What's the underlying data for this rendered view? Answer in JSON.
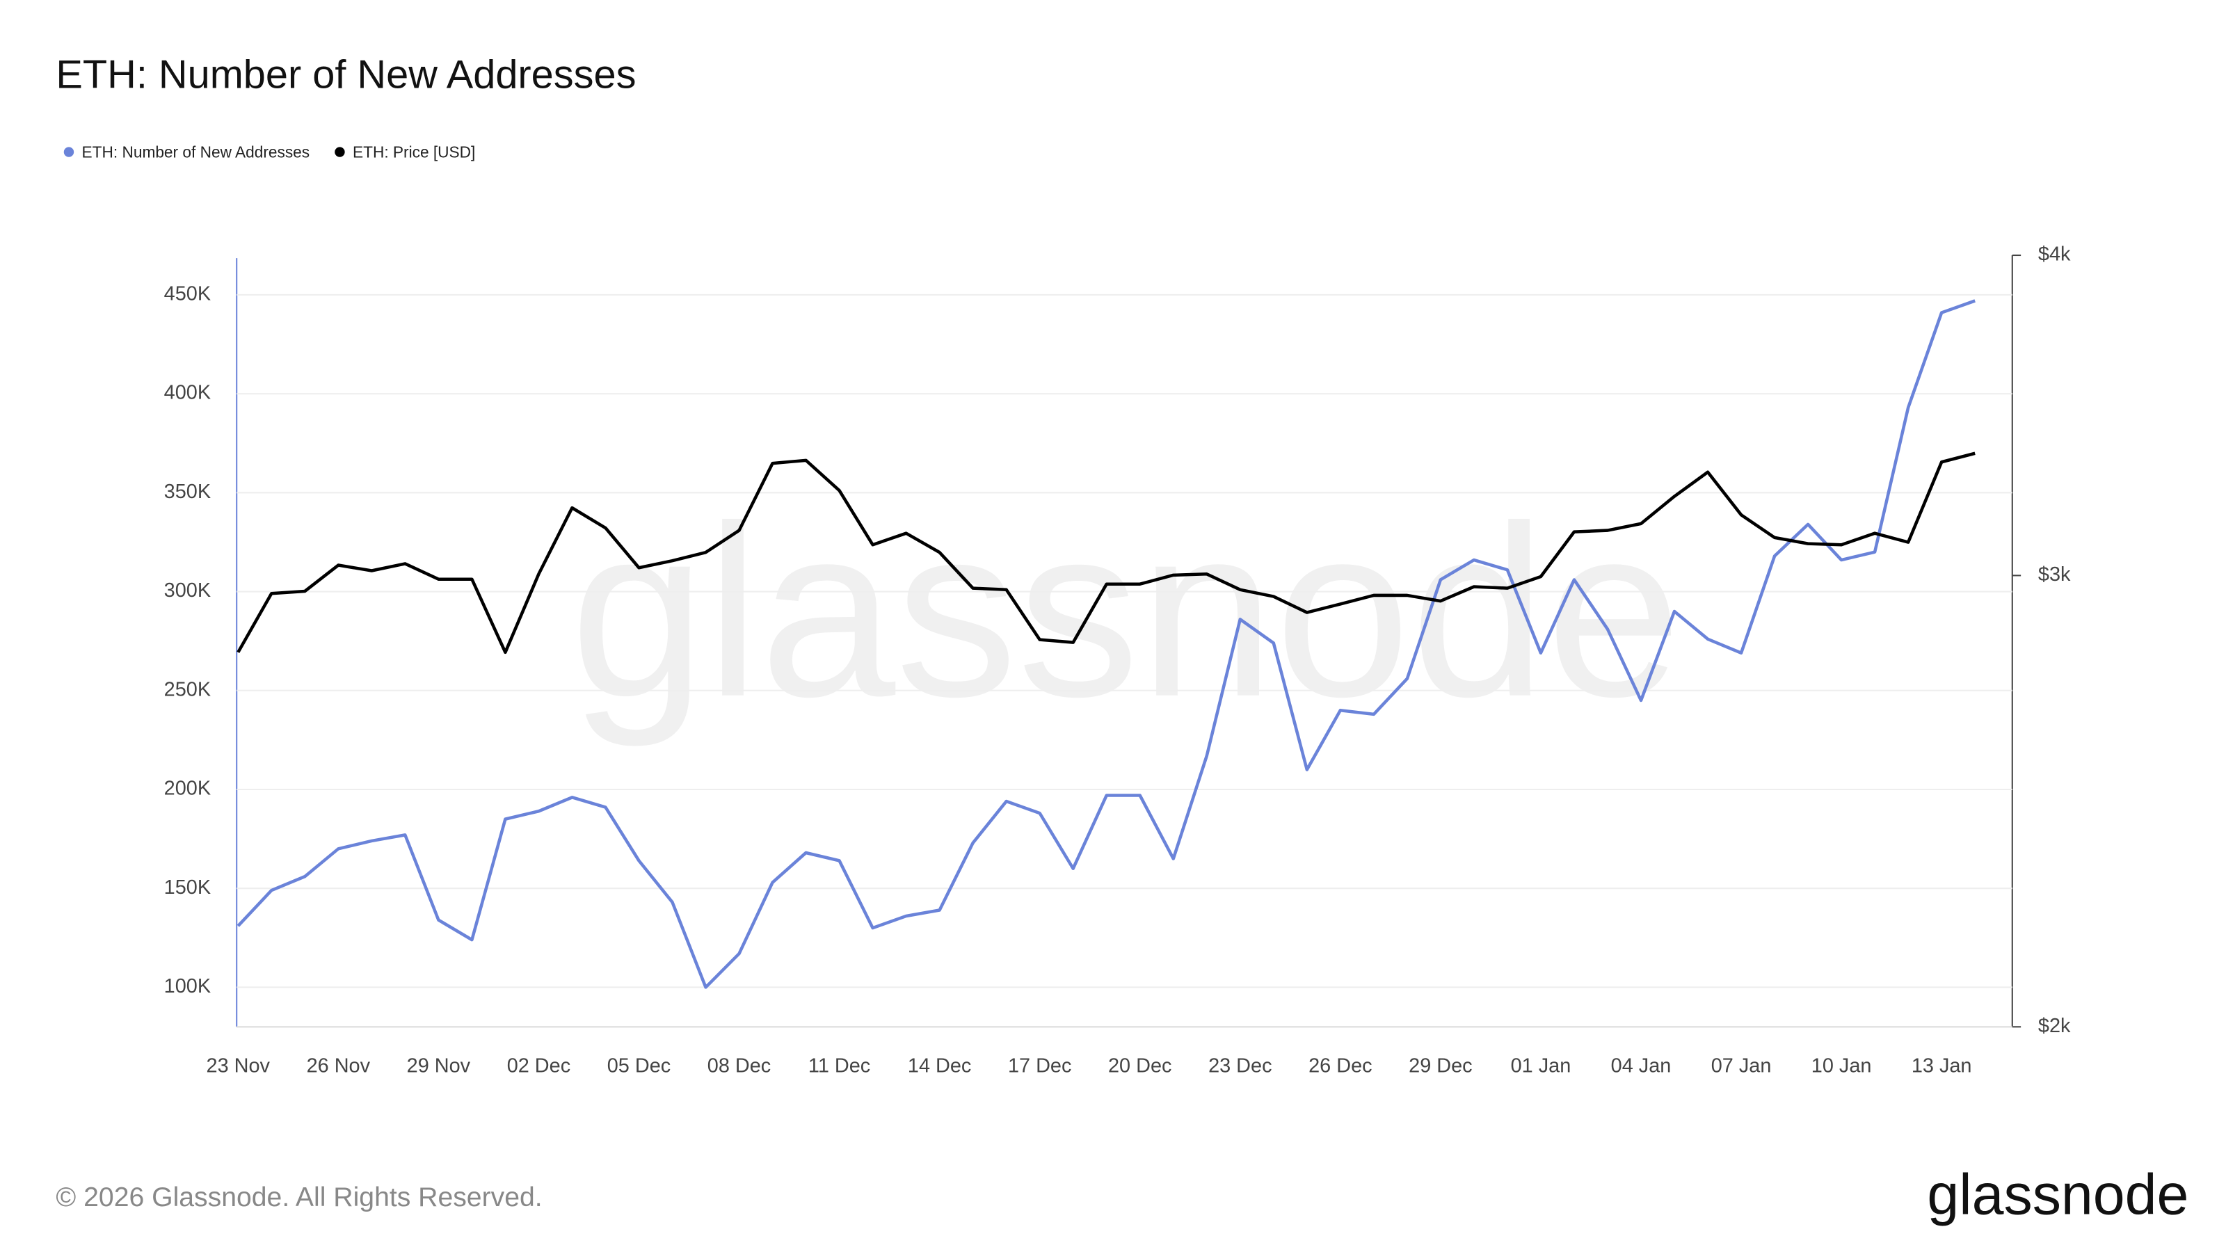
{
  "chart_data": {
    "type": "line",
    "title": "ETH: Number of New Addresses",
    "categories": [
      "23 Nov",
      null,
      null,
      "26 Nov",
      null,
      null,
      "29 Nov",
      null,
      null,
      "02 Dec",
      null,
      null,
      "05 Dec",
      null,
      null,
      "08 Dec",
      null,
      null,
      "11 Dec",
      null,
      null,
      "14 Dec",
      null,
      null,
      "17 Dec",
      null,
      null,
      "20 Dec",
      null,
      null,
      "23 Dec",
      null,
      null,
      "26 Dec",
      null,
      null,
      "29 Dec",
      null,
      null,
      "01 Jan",
      null,
      null,
      "04 Jan",
      null,
      null,
      "07 Jan",
      null,
      null,
      "10 Jan",
      null,
      null,
      "13 Jan",
      null
    ],
    "series": [
      {
        "name": "ETH: Number of New Addresses",
        "color": "#6a83d9",
        "values": [
          131000,
          149000,
          156000,
          170000,
          174000,
          177000,
          134000,
          124000,
          185000,
          189000,
          196000,
          191000,
          164000,
          143000,
          100000,
          117000,
          153000,
          168000,
          164000,
          130000,
          136000,
          139000,
          173000,
          194000,
          188000,
          160000,
          197000,
          197000,
          165000,
          217000,
          286000,
          274000,
          210000,
          240000,
          238000,
          256000,
          306000,
          316000,
          311000,
          269000,
          306000,
          281000,
          245000,
          290000,
          276000,
          269000,
          318000,
          334000,
          316000,
          320000,
          393000,
          441000,
          447000
        ]
      },
      {
        "name": "ETH: Price [USD]",
        "color": "#000000",
        "axis": "y2",
        "values": [
          2800,
          2952,
          2958,
          3028,
          3013,
          3032,
          2990,
          2990,
          2800,
          3004,
          3188,
          3131,
          3021,
          3040,
          3063,
          3124,
          3318,
          3327,
          3238,
          3084,
          3116,
          3063,
          2966,
          2962,
          2832,
          2825,
          2977,
          2977,
          3001,
          3004,
          2962,
          2944,
          2902,
          2924,
          2947,
          2947,
          2932,
          2970,
          2966,
          2997,
          3120,
          3124,
          3143,
          3221,
          3292,
          3168,
          3104,
          3087,
          3084,
          3116,
          3091,
          3322,
          3348
        ]
      }
    ],
    "ylim": [
      80000,
      470000
    ],
    "yticks": [
      {
        "value": 100000,
        "label": "100K"
      },
      {
        "value": 150000,
        "label": "150K"
      },
      {
        "value": 200000,
        "label": "200K"
      },
      {
        "value": 250000,
        "label": "250K"
      },
      {
        "value": 300000,
        "label": "300K"
      },
      {
        "value": 350000,
        "label": "350K"
      },
      {
        "value": 400000,
        "label": "400K"
      },
      {
        "value": 450000,
        "label": "450K"
      }
    ],
    "y2lim": [
      2000,
      4000
    ],
    "y2log": true,
    "y2ticks": [
      {
        "value": 2000,
        "label": "$2k"
      },
      {
        "value": 3000,
        "label": "$3k"
      },
      {
        "value": 4000,
        "label": "$4k"
      }
    ],
    "grid": true,
    "legend": "top-left",
    "watermark": "glassnode",
    "footer": "© 2026 Glassnode. All Rights Reserved.",
    "logo": "glassnode"
  }
}
